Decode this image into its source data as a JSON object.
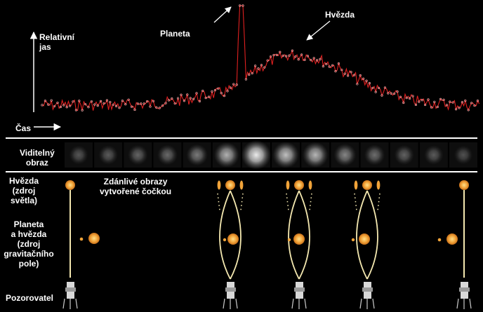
{
  "lightcurve": {
    "y_axis_label": [
      "Relativní",
      "jas"
    ],
    "x_axis_label": "Čas",
    "planet_label": "Planeta",
    "star_label": "Hvězda",
    "curve_color": "#e02020",
    "marker_color": "#ffc0c0"
  },
  "visible_image": {
    "label": [
      "Viditelný",
      "obraz"
    ],
    "brightness": [
      0.3,
      0.32,
      0.36,
      0.38,
      0.45,
      0.68,
      0.92,
      0.74,
      0.7,
      0.5,
      0.4,
      0.35,
      0.32,
      0.28
    ]
  },
  "rows": {
    "star_label": [
      "Hvězda",
      "(zdroj",
      "světla)"
    ],
    "lens_label": [
      "Planeta",
      "a hvězda",
      "(zdroj",
      "gravitačního",
      "pole)"
    ],
    "observer_label": "Pozorovatel",
    "apparent_images_label": [
      "Zdánlivé obrazy",
      "vytvořené čočkou"
    ]
  },
  "colors": {
    "ray": "#f4e8b0",
    "star_fill": "#f2a43a",
    "star_core": "#ffd070",
    "separator": "#ffffff"
  }
}
